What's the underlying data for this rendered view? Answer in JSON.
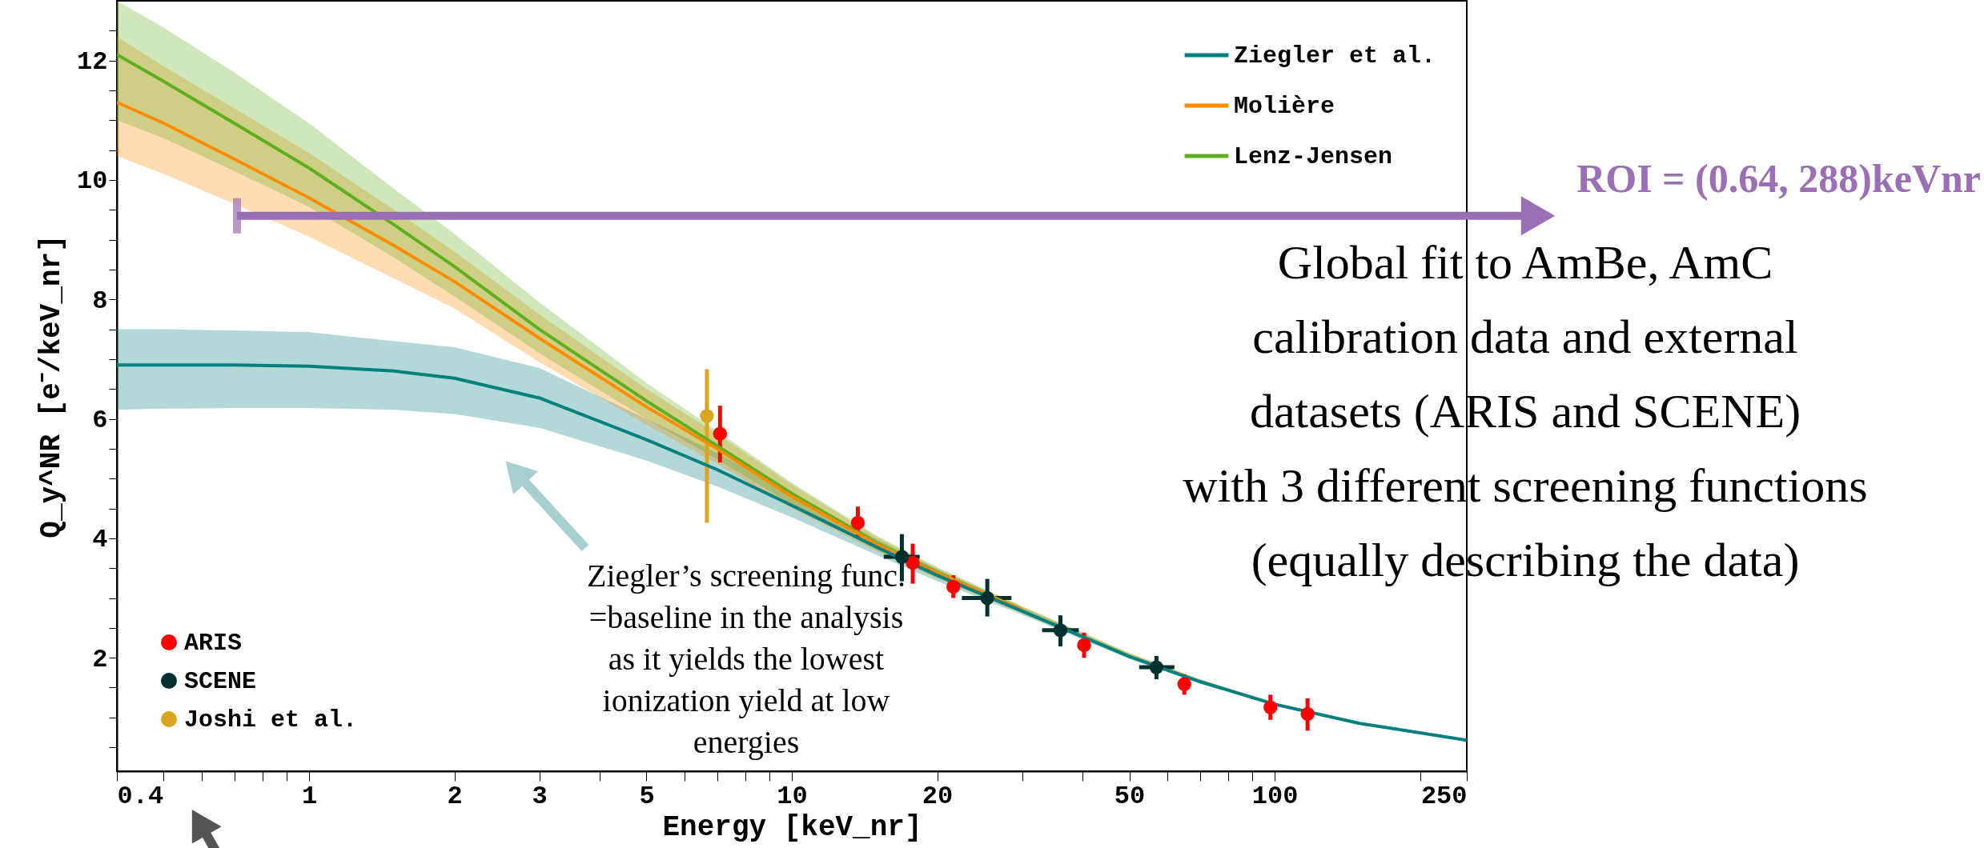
{
  "chart_data": {
    "type": "line",
    "xlabel": "Energy [keV_nr]",
    "ylabel": "Q_y^NR  [e⁻/keV_nr]",
    "xlim": [
      0.4,
      250
    ],
    "ylim": [
      0.1,
      13
    ],
    "log": "x",
    "xticks": [
      0.4,
      {
        "value": 0.5,
        "label": null
      },
      {
        "value": 0.6,
        "label": null
      },
      {
        "value": 0.7,
        "label": null
      },
      {
        "value": 0.8,
        "label": null
      },
      {
        "value": 0.9,
        "label": null
      },
      1,
      2,
      3,
      {
        "value": 4,
        "label": null
      },
      5,
      {
        "value": 6,
        "label": null
      },
      {
        "value": 7,
        "label": null
      },
      {
        "value": 8,
        "label": null
      },
      {
        "value": 9,
        "label": null
      },
      10,
      20,
      {
        "value": 30,
        "label": null
      },
      {
        "value": 40,
        "label": null
      },
      50,
      {
        "value": 60,
        "label": null
      },
      {
        "value": 70,
        "label": null
      },
      {
        "value": 80,
        "label": null
      },
      {
        "value": 90,
        "label": null
      },
      100,
      {
        "value": 200,
        "label": null
      },
      250
    ],
    "yticks": [
      {
        "value": 0.5,
        "label": null
      },
      {
        "value": 1,
        "label": null
      },
      {
        "value": 1.5,
        "label": null
      },
      2,
      {
        "value": 2.5,
        "label": null
      },
      {
        "value": 3,
        "label": null
      },
      {
        "value": 3.5,
        "label": null
      },
      4,
      {
        "value": 4.5,
        "label": null
      },
      {
        "value": 5,
        "label": null
      },
      {
        "value": 5.5,
        "label": null
      },
      6,
      {
        "value": 6.5,
        "label": null
      },
      {
        "value": 7,
        "label": null
      },
      {
        "value": 7.5,
        "label": null
      },
      8,
      {
        "value": 8.5,
        "label": null
      },
      {
        "value": 9,
        "label": null
      },
      {
        "value": 9.5,
        "label": null
      },
      10,
      {
        "value": 10.5,
        "label": null
      },
      {
        "value": 11,
        "label": null
      },
      {
        "value": 11.5,
        "label": null
      },
      12,
      {
        "value": 12.5,
        "label": null
      }
    ],
    "x": [
      0.4,
      0.5,
      0.7,
      1,
      1.5,
      2,
      3,
      5,
      7,
      10,
      15,
      20,
      30,
      50,
      70,
      100,
      150,
      250
    ],
    "series": [
      {
        "name": "Ziegler et al.",
        "color": "#00807f",
        "values": [
          6.9,
          6.9,
          6.9,
          6.88,
          6.8,
          6.68,
          6.35,
          5.65,
          5.15,
          4.55,
          3.85,
          3.38,
          2.78,
          2.02,
          1.6,
          1.22,
          0.9,
          0.62
        ],
        "lower": [
          6.15,
          6.17,
          6.18,
          6.18,
          6.15,
          6.08,
          5.85,
          5.3,
          4.87,
          4.35,
          3.72,
          3.28,
          2.72,
          1.98,
          1.57,
          1.2,
          0.88,
          0.6
        ],
        "upper": [
          7.5,
          7.5,
          7.48,
          7.45,
          7.3,
          7.2,
          6.85,
          6.0,
          5.43,
          4.75,
          3.98,
          3.48,
          2.84,
          2.06,
          1.63,
          1.24,
          0.92,
          0.64
        ]
      },
      {
        "name": "Molière",
        "color": "#ff8c00",
        "values": [
          11.3,
          10.95,
          10.35,
          9.7,
          8.9,
          8.3,
          7.35,
          6.2,
          5.5,
          4.7,
          3.9,
          3.42,
          2.8,
          null,
          null,
          null,
          null,
          null
        ],
        "lower": [
          10.4,
          10.1,
          9.6,
          9.05,
          8.35,
          7.85,
          6.95,
          5.9,
          5.25,
          4.5,
          3.78,
          3.33,
          2.74,
          2.0,
          1.58,
          1.21,
          0.88,
          0.6
        ],
        "upper": [
          12.4,
          11.9,
          11.2,
          10.45,
          9.5,
          8.8,
          7.75,
          6.5,
          5.75,
          4.9,
          4.02,
          3.5,
          2.86,
          2.08,
          1.64,
          1.25,
          0.92,
          0.64
        ]
      },
      {
        "name": "Lenz-Jensen",
        "color": "#5fb01e",
        "values": [
          12.1,
          11.65,
          10.95,
          10.2,
          9.25,
          8.55,
          7.5,
          6.3,
          5.55,
          4.75,
          3.92,
          3.43,
          2.8,
          null,
          null,
          null,
          null,
          null
        ],
        "lower": [
          11.0,
          10.7,
          10.15,
          9.55,
          8.7,
          8.05,
          7.1,
          6.0,
          5.32,
          4.57,
          3.8,
          3.34,
          2.75,
          2.0,
          1.58,
          1.21,
          0.88,
          0.6
        ],
        "upper": [
          13.0,
          12.55,
          11.8,
          10.95,
          9.85,
          9.1,
          7.95,
          6.6,
          5.8,
          4.93,
          4.04,
          3.52,
          2.86,
          2.08,
          1.64,
          1.25,
          0.92,
          0.64
        ]
      },
      {
        "name": "ARIS",
        "type": "scatter",
        "color": "#ff0000",
        "x": [
          7.1,
          13.7,
          17.8,
          21.6,
          40.3,
          65,
          98,
          117
        ],
        "values": [
          5.75,
          4.26,
          3.59,
          3.19,
          2.21,
          1.56,
          1.17,
          1.06
        ],
        "errors": [
          [
            5.27,
            6.22
          ],
          [
            4.0,
            4.53
          ],
          [
            3.24,
            3.91
          ],
          [
            3.0,
            3.38
          ],
          [
            2.0,
            2.42
          ],
          [
            1.38,
            1.72
          ],
          [
            0.96,
            1.38
          ],
          [
            0.78,
            1.32
          ]
        ]
      },
      {
        "name": "SCENE",
        "type": "scatter",
        "color": "#003030",
        "x": [
          16.9,
          25.4,
          36,
          56.9
        ],
        "values": [
          3.69,
          3.0,
          2.46,
          1.84
        ],
        "errors": [
          [
            3.28,
            4.07
          ],
          [
            2.69,
            3.32
          ],
          [
            2.19,
            2.71
          ],
          [
            1.64,
            2.03
          ]
        ],
        "xerrors": [
          [
            15.5,
            18.4
          ],
          [
            22.5,
            28.5
          ],
          [
            33,
            39.3
          ],
          [
            52.4,
            62
          ]
        ]
      },
      {
        "name": "Joshi et al.",
        "type": "scatter",
        "color": "#daa520",
        "x": [
          6.67
        ],
        "values": [
          6.05
        ],
        "errors": [
          [
            4.26,
            6.83
          ]
        ]
      }
    ],
    "legend": "top right",
    "ref_lines": [
      {
        "axis": "y",
        "value": 9.4,
        "label": "ROI = (0.64, 288)keVnr",
        "color": "#9b6fb5"
      }
    ],
    "annotations": [
      "Global fit to AmBe, AmC\ncalibration data and external\ndatasets (ARIS and SCENE)\nwith 3 different screening functions\n(equally describing the data)",
      "Ziegler’s screening func.\n=baseline in the analysis\nas it yields the lowest\nionization yield at low\nenergies"
    ]
  }
}
